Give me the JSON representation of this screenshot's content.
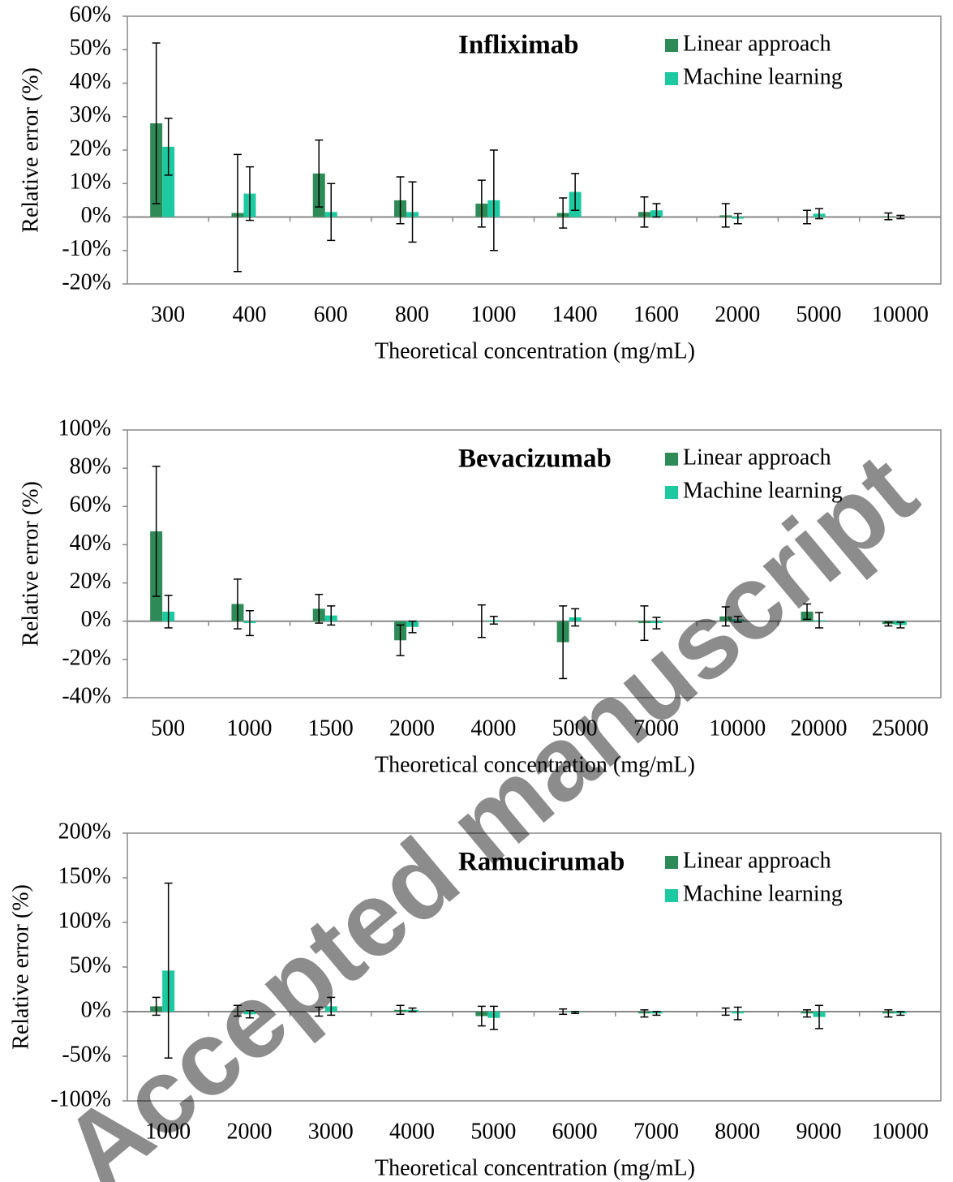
{
  "chart_data": [
    {
      "type": "bar",
      "title": "Infliximab",
      "x_label": "Theoretical concentration (mg/mL)",
      "y_label": "Relative error (%)",
      "categories": [
        "300",
        "400",
        "600",
        "800",
        "1000",
        "1400",
        "1600",
        "2000",
        "5000",
        "10000"
      ],
      "series": [
        {
          "name": "Linear approach",
          "color": "#2e8b57",
          "values": [
            28,
            1.2,
            13,
            5,
            4,
            1.2,
            1.5,
            0.5,
            0,
            0.2
          ],
          "errors": [
            24,
            17.5,
            10,
            7,
            7,
            4.5,
            4.5,
            3.5,
            2,
            1
          ]
        },
        {
          "name": "Machine learning",
          "color": "#1dc9a0",
          "values": [
            21,
            7,
            1.5,
            1.5,
            5,
            7.5,
            2,
            -0.5,
            1,
            0
          ],
          "errors": [
            8.5,
            8,
            8.5,
            9,
            15,
            5.5,
            2,
            1.5,
            1.5,
            0.5
          ]
        }
      ],
      "ylim": [
        -20,
        60
      ],
      "yticks": [
        {
          "value": -20,
          "label": "-20%"
        },
        {
          "value": -10,
          "label": "-10%"
        },
        {
          "value": 0,
          "label": "0%"
        },
        {
          "value": 10,
          "label": "10%"
        },
        {
          "value": 20,
          "label": "20%"
        },
        {
          "value": 30,
          "label": "30%"
        },
        {
          "value": 40,
          "label": "40%"
        },
        {
          "value": 50,
          "label": "50%"
        },
        {
          "value": 60,
          "label": "60%"
        }
      ],
      "legend": "upper right"
    },
    {
      "type": "bar",
      "title": "Bevacizumab",
      "x_label": "Theoretical concentration (mg/mL)",
      "y_label": "Relative error (%)",
      "categories": [
        "500",
        "1000",
        "1500",
        "2000",
        "4000",
        "5000",
        "7000",
        "10000",
        "20000",
        "25000"
      ],
      "series": [
        {
          "name": "Linear approach",
          "color": "#2e8b57",
          "values": [
            47,
            9,
            6.5,
            -10,
            0,
            -11,
            -1,
            2.5,
            5,
            -1.5
          ],
          "errors": [
            34,
            13,
            7.5,
            8,
            8.5,
            19,
            9,
            5,
            4,
            1
          ]
        },
        {
          "name": "Machine learning",
          "color": "#1dc9a0",
          "values": [
            5,
            -1,
            3,
            -3,
            0.5,
            2,
            -1,
            1,
            0.5,
            -2
          ],
          "errors": [
            8.5,
            6.5,
            5,
            3,
            2,
            4.5,
            3,
            1.5,
            4,
            1.5
          ]
        }
      ],
      "ylim": [
        -40,
        100
      ],
      "yticks": [
        {
          "value": -40,
          "label": "-40%"
        },
        {
          "value": -20,
          "label": "-20%"
        },
        {
          "value": 0,
          "label": "0%"
        },
        {
          "value": 20,
          "label": "20%"
        },
        {
          "value": 40,
          "label": "40%"
        },
        {
          "value": 60,
          "label": "60%"
        },
        {
          "value": 80,
          "label": "80%"
        },
        {
          "value": 100,
          "label": "100%"
        }
      ],
      "legend": "upper right"
    },
    {
      "type": "bar",
      "title": "Ramucirumab",
      "x_label": "Theoretical concentration (mg/mL)",
      "y_label": "Relative error (%)",
      "categories": [
        "1000",
        "2000",
        "3000",
        "4000",
        "5000",
        "6000",
        "7000",
        "8000",
        "9000",
        "10000"
      ],
      "series": [
        {
          "name": "Linear approach",
          "color": "#2e8b57",
          "values": [
            6,
            1,
            0,
            2,
            -5,
            0,
            -2,
            0,
            -2,
            -2
          ],
          "errors": [
            10,
            6,
            5,
            5,
            11,
            3,
            4,
            4,
            4,
            4
          ]
        },
        {
          "name": "Machine learning",
          "color": "#1dc9a0",
          "values": [
            46,
            -3,
            6,
            2,
            -7,
            -1,
            -2,
            -2,
            -6,
            -2
          ],
          "errors": [
            98,
            4,
            10,
            2,
            13,
            1,
            2,
            7,
            13,
            2
          ]
        }
      ],
      "ylim": [
        -100,
        200
      ],
      "yticks": [
        {
          "value": -100,
          "label": "-100%"
        },
        {
          "value": -50,
          "label": "-50%"
        },
        {
          "value": 0,
          "label": "0%"
        },
        {
          "value": 50,
          "label": "50%"
        },
        {
          "value": 100,
          "label": "100%"
        },
        {
          "value": 150,
          "label": "150%"
        },
        {
          "value": 200,
          "label": "200%"
        }
      ],
      "legend": "upper right"
    }
  ],
  "watermark": "Accepted manuscript"
}
